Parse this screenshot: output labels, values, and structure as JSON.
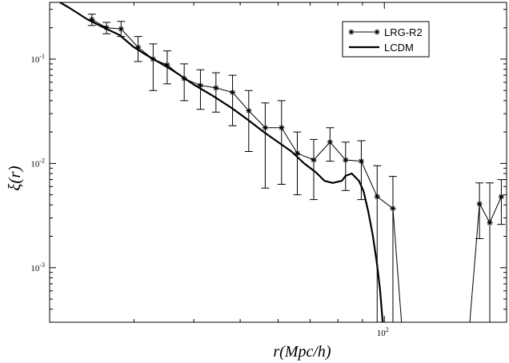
{
  "chart_data": {
    "type": "line",
    "xscale": "log",
    "yscale": "log",
    "xlim": [
      20,
      180
    ],
    "ylim": [
      0.0003,
      0.35
    ],
    "xlabel": "r(Mpc/h)",
    "ylabel": "ξ(r)",
    "x_ticks": [
      {
        "base": "10",
        "exp": "2",
        "value": 100
      }
    ],
    "y_ticks": [
      {
        "base": "10",
        "exp": "-1",
        "value": 0.1
      },
      {
        "base": "10",
        "exp": "-2",
        "value": 0.01
      },
      {
        "base": "10",
        "exp": "-3",
        "value": 0.001
      }
    ],
    "grid": false,
    "legend_position": "top-right",
    "series": [
      {
        "name": "LRG-R2",
        "style": "line-with-star-markers-and-errorbars",
        "color": "#000000",
        "points": [
          {
            "x": 24.5,
            "y": 0.24,
            "lo": 0.21,
            "hi": 0.27
          },
          {
            "x": 26.3,
            "y": 0.2,
            "lo": 0.175,
            "hi": 0.225
          },
          {
            "x": 28.2,
            "y": 0.195,
            "lo": 0.165,
            "hi": 0.23
          },
          {
            "x": 30.6,
            "y": 0.13,
            "lo": 0.095,
            "hi": 0.165
          },
          {
            "x": 32.9,
            "y": 0.1,
            "lo": 0.05,
            "hi": 0.14
          },
          {
            "x": 35.2,
            "y": 0.088,
            "lo": 0.058,
            "hi": 0.12
          },
          {
            "x": 38.2,
            "y": 0.065,
            "lo": 0.04,
            "hi": 0.09
          },
          {
            "x": 41.3,
            "y": 0.056,
            "lo": 0.033,
            "hi": 0.079
          },
          {
            "x": 44.5,
            "y": 0.053,
            "lo": 0.031,
            "hi": 0.074
          },
          {
            "x": 48.2,
            "y": 0.048,
            "lo": 0.023,
            "hi": 0.07
          },
          {
            "x": 52.1,
            "y": 0.032,
            "lo": 0.013,
            "hi": 0.05
          },
          {
            "x": 56.4,
            "y": 0.022,
            "lo": 0.0058,
            "hi": 0.038
          },
          {
            "x": 61.0,
            "y": 0.022,
            "lo": 0.0063,
            "hi": 0.04
          },
          {
            "x": 65.8,
            "y": 0.0125,
            "lo": 0.005,
            "hi": 0.02
          },
          {
            "x": 71.2,
            "y": 0.0108,
            "lo": 0.0045,
            "hi": 0.017
          },
          {
            "x": 77.0,
            "y": 0.016,
            "lo": 0.0105,
            "hi": 0.022
          },
          {
            "x": 83.0,
            "y": 0.0108,
            "lo": 0.0055,
            "hi": 0.016
          },
          {
            "x": 89.5,
            "y": 0.0105,
            "lo": 0.0045,
            "hi": 0.0165
          },
          {
            "x": 96.6,
            "y": 0.0048,
            "lo": 0.0003,
            "hi": 0.0095
          },
          {
            "x": 104.2,
            "y": 0.0037,
            "lo": 0.0003,
            "hi": 0.0075
          },
          {
            "x": 158.0,
            "y": 0.0041,
            "lo": 0.0019,
            "hi": 0.0065
          },
          {
            "x": 166.0,
            "y": 0.0027,
            "lo": 0.0003,
            "hi": 0.0065
          },
          {
            "x": 175.5,
            "y": 0.0048,
            "lo": 0.0026,
            "hi": 0.007
          }
        ],
        "extra_lines": [
          [
            [
              104.2,
              0.0037
            ],
            [
              108.6,
              0.0003
            ]
          ],
          [
            [
              150.8,
              0.0003
            ],
            [
              158.0,
              0.0041
            ]
          ]
        ]
      },
      {
        "name": "LCDM",
        "style": "thick-line",
        "color": "#000000",
        "points": [
          [
            20.0,
            0.4
          ],
          [
            22.0,
            0.31
          ],
          [
            24.0,
            0.24
          ],
          [
            26.0,
            0.2
          ],
          [
            28.0,
            0.17
          ],
          [
            30.0,
            0.13
          ],
          [
            32.0,
            0.108
          ],
          [
            34.0,
            0.092
          ],
          [
            36.0,
            0.079
          ],
          [
            38.0,
            0.067
          ],
          [
            40.0,
            0.057
          ],
          [
            44.0,
            0.044
          ],
          [
            48.0,
            0.034
          ],
          [
            52.0,
            0.026
          ],
          [
            56.0,
            0.02
          ],
          [
            60.0,
            0.016
          ],
          [
            64.0,
            0.013
          ],
          [
            68.0,
            0.01
          ],
          [
            72.0,
            0.0082
          ],
          [
            75.0,
            0.0068
          ],
          [
            78.0,
            0.0065
          ],
          [
            81.5,
            0.0068
          ],
          [
            83.0,
            0.0076
          ],
          [
            85.5,
            0.008
          ],
          [
            88.5,
            0.0068
          ],
          [
            90.5,
            0.0054
          ],
          [
            92.5,
            0.0035
          ],
          [
            94.5,
            0.0021
          ],
          [
            96.5,
            0.0011
          ],
          [
            98.0,
            0.0006
          ],
          [
            99.2,
            0.0003
          ]
        ]
      }
    ]
  }
}
